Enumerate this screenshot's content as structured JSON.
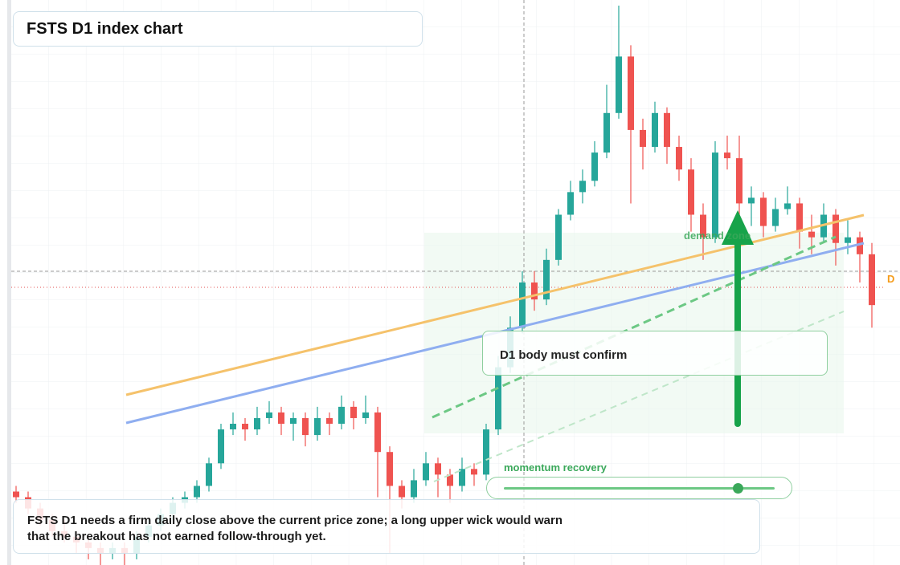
{
  "chart_data": {
    "type": "candlestick",
    "title": "FSTS D1 index chart",
    "ylim": [
      0,
      100
    ],
    "up_color": "#26a69a",
    "down_color": "#ef5350",
    "open": [
      13,
      12,
      10,
      8,
      6,
      5,
      4,
      3,
      2,
      3,
      2,
      5,
      7,
      9,
      11,
      12,
      14,
      18,
      24,
      25,
      24,
      26,
      27,
      25,
      26,
      23,
      26,
      25,
      28,
      26,
      27,
      20,
      14,
      12,
      15,
      18,
      16,
      14,
      17,
      16,
      24,
      35,
      42,
      50,
      47,
      54,
      62,
      66,
      68,
      73,
      80,
      90,
      77,
      74,
      80,
      74,
      70,
      62,
      58,
      73,
      72,
      64,
      65,
      60,
      63,
      64,
      59,
      58,
      62,
      57,
      58,
      55
    ],
    "high": [
      14,
      13,
      11,
      9,
      8,
      6,
      5,
      4,
      4,
      4,
      6,
      8,
      10,
      12,
      13,
      15,
      19,
      25,
      27,
      26,
      28,
      29,
      28,
      27,
      27,
      28,
      27,
      30,
      29,
      30,
      28,
      21,
      15,
      17,
      20,
      19,
      17,
      19,
      18,
      25,
      37,
      44,
      52,
      52,
      56,
      63,
      68,
      70,
      75,
      85,
      99,
      92,
      79,
      82,
      81,
      76,
      72,
      64,
      75,
      76,
      76,
      67,
      66,
      65,
      67,
      65,
      62,
      64,
      63,
      61,
      59,
      57
    ],
    "low": [
      11,
      9,
      7,
      5,
      4,
      2,
      1,
      0,
      1,
      0,
      1,
      4,
      6,
      8,
      10,
      11,
      13,
      17,
      23,
      22,
      23,
      25,
      23,
      22,
      21,
      22,
      23,
      24,
      24,
      25,
      12,
      2,
      10,
      11,
      14,
      12,
      11,
      13,
      14,
      15,
      23,
      34,
      41,
      45,
      46,
      53,
      61,
      64,
      67,
      72,
      79,
      64,
      70,
      73,
      71,
      68,
      59,
      54,
      57,
      70,
      58,
      60,
      58,
      59,
      62,
      56,
      55,
      57,
      53,
      55,
      50,
      42
    ],
    "close": [
      12,
      10,
      8,
      6,
      5,
      4,
      3,
      2,
      3,
      2,
      5,
      7,
      9,
      11,
      12,
      14,
      18,
      24,
      25,
      24,
      26,
      27,
      25,
      26,
      23,
      26,
      25,
      28,
      26,
      27,
      20,
      14,
      12,
      15,
      18,
      16,
      14,
      17,
      16,
      24,
      35,
      42,
      50,
      47,
      54,
      62,
      66,
      68,
      73,
      80,
      90,
      77,
      74,
      80,
      74,
      70,
      62,
      58,
      73,
      72,
      64,
      65,
      60,
      63,
      64,
      59,
      58,
      62,
      57,
      58,
      55,
      46
    ],
    "annotations": {
      "callout": "D1 body must confirm",
      "slider_label": "momentum recovery",
      "zone_label": "demand zone",
      "price_tag": "D",
      "note": "FSTS D1 needs a firm daily close above the current price zone; a long upper wick would warn that the breakout has not earned follow-through yet."
    }
  }
}
